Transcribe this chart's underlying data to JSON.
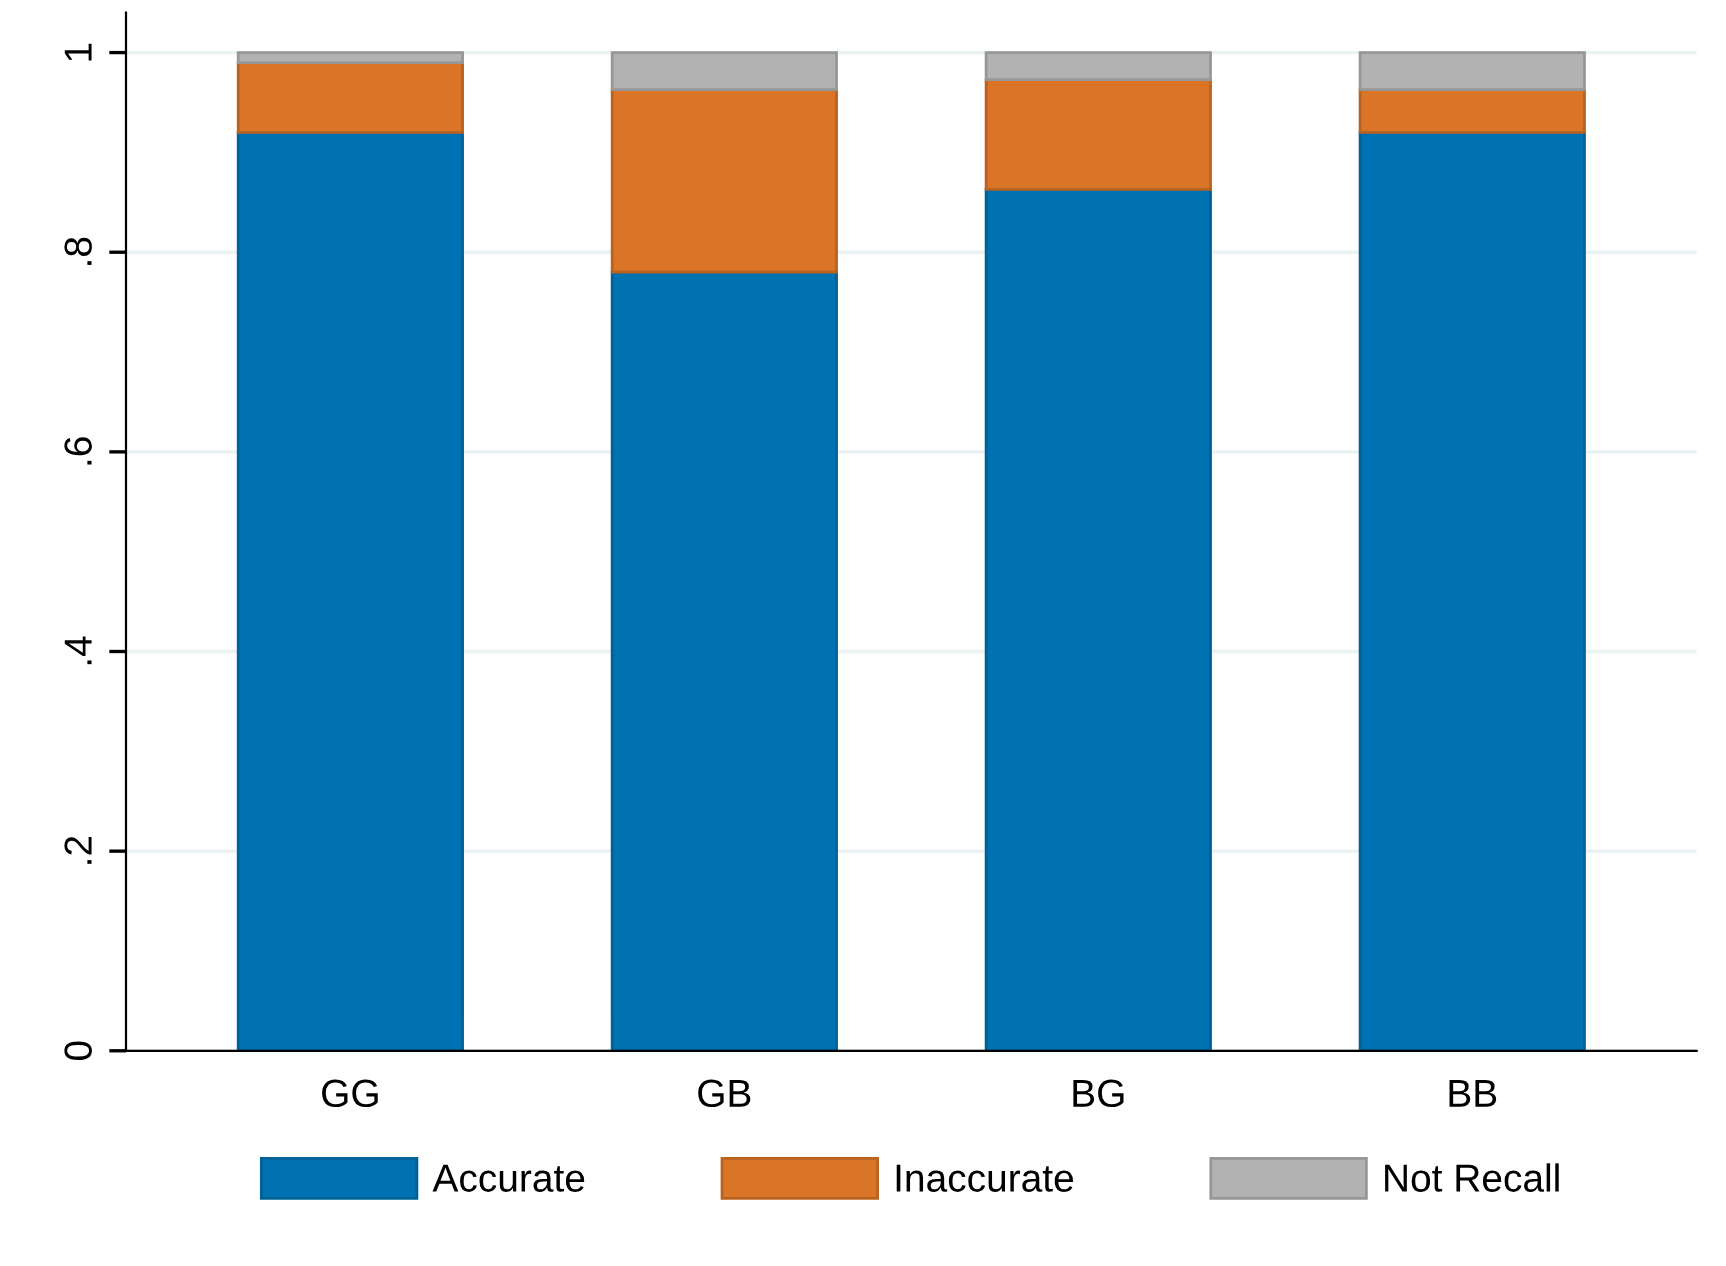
{
  "chart_data": {
    "type": "bar",
    "stacked": true,
    "categories": [
      "GG",
      "GB",
      "BG",
      "BB"
    ],
    "series": [
      {
        "name": "Accurate",
        "color": "#0072b2",
        "values": [
          0.92,
          0.78,
          0.863,
          0.92
        ]
      },
      {
        "name": "Inaccurate",
        "color": "#da7426",
        "values": [
          0.07,
          0.183,
          0.11,
          0.043
        ]
      },
      {
        "name": "Not Recall",
        "color": "#b2b2b2",
        "values": [
          0.01,
          0.037,
          0.027,
          0.037
        ]
      }
    ],
    "ylim": [
      0,
      1.04
    ],
    "yticks": [
      0,
      {
        "value": 0.2,
        "label": ".2"
      },
      {
        "value": 0.4,
        "label": ".4"
      },
      {
        "value": 0.6,
        "label": ".6"
      },
      {
        "value": 0.8,
        "label": ".8"
      },
      1
    ],
    "grid": "y",
    "legend": "bottom"
  }
}
